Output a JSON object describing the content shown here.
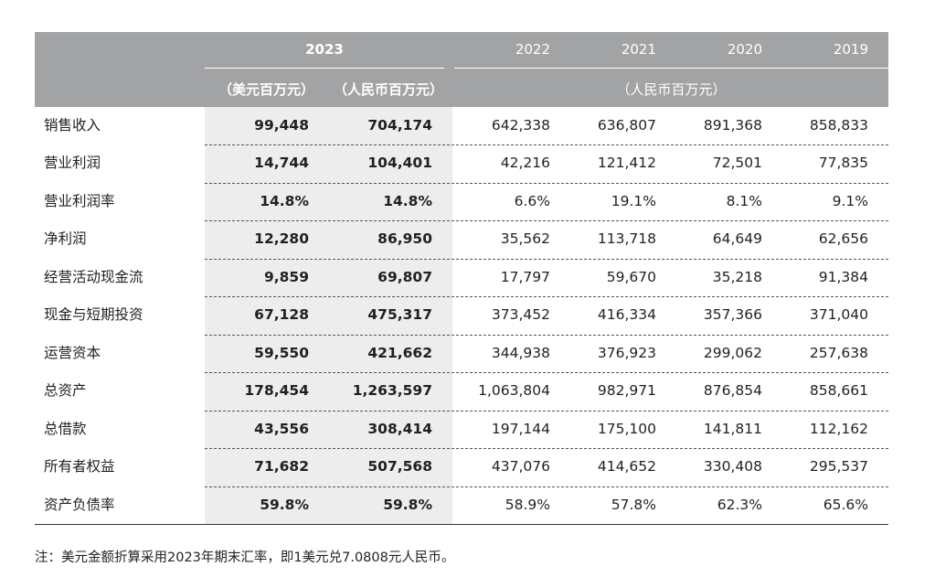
{
  "header": {
    "year_main": "2023",
    "usd_unit": "（美元百万元）",
    "rmb_unit": "（人民币百万元）",
    "other_years": [
      "2022",
      "2021",
      "2020",
      "2019"
    ],
    "other_unit": "（人民币百万元）"
  },
  "rows": [
    {
      "label": "销售收入",
      "usd": "99,448",
      "rmb": "704,174",
      "y2022": "642,338",
      "y2021": "636,807",
      "y2020": "891,368",
      "y2019": "858,833"
    },
    {
      "label": "营业利润",
      "usd": "14,744",
      "rmb": "104,401",
      "y2022": "42,216",
      "y2021": "121,412",
      "y2020": "72,501",
      "y2019": "77,835"
    },
    {
      "label": "营业利润率",
      "usd": "14.8%",
      "rmb": "14.8%",
      "y2022": "6.6%",
      "y2021": "19.1%",
      "y2020": "8.1%",
      "y2019": "9.1%"
    },
    {
      "label": "净利润",
      "usd": "12,280",
      "rmb": "86,950",
      "y2022": "35,562",
      "y2021": "113,718",
      "y2020": "64,649",
      "y2019": "62,656"
    },
    {
      "label": "经营活动现金流",
      "usd": "9,859",
      "rmb": "69,807",
      "y2022": "17,797",
      "y2021": "59,670",
      "y2020": "35,218",
      "y2019": "91,384"
    },
    {
      "label": "现金与短期投资",
      "usd": "67,128",
      "rmb": "475,317",
      "y2022": "373,452",
      "y2021": "416,334",
      "y2020": "357,366",
      "y2019": "371,040"
    },
    {
      "label": "运营资本",
      "usd": "59,550",
      "rmb": "421,662",
      "y2022": "344,938",
      "y2021": "376,923",
      "y2020": "299,062",
      "y2019": "257,638"
    },
    {
      "label": "总资产",
      "usd": "178,454",
      "rmb": "1,263,597",
      "y2022": "1,063,804",
      "y2021": "982,971",
      "y2020": "876,854",
      "y2019": "858,661"
    },
    {
      "label": "总借款",
      "usd": "43,556",
      "rmb": "308,414",
      "y2022": "197,144",
      "y2021": "175,100",
      "y2020": "141,811",
      "y2019": "112,162"
    },
    {
      "label": "所有者权益",
      "usd": "71,682",
      "rmb": "507,568",
      "y2022": "437,076",
      "y2021": "414,652",
      "y2020": "330,408",
      "y2019": "295,537"
    },
    {
      "label": "资产负债率",
      "usd": "59.8%",
      "rmb": "59.8%",
      "y2022": "58.9%",
      "y2021": "57.8%",
      "y2020": "62.3%",
      "y2019": "65.6%"
    }
  ],
  "note": "注：美元金额折算采用2023年期末汇率，即1美元兑7.0808元人民币。"
}
